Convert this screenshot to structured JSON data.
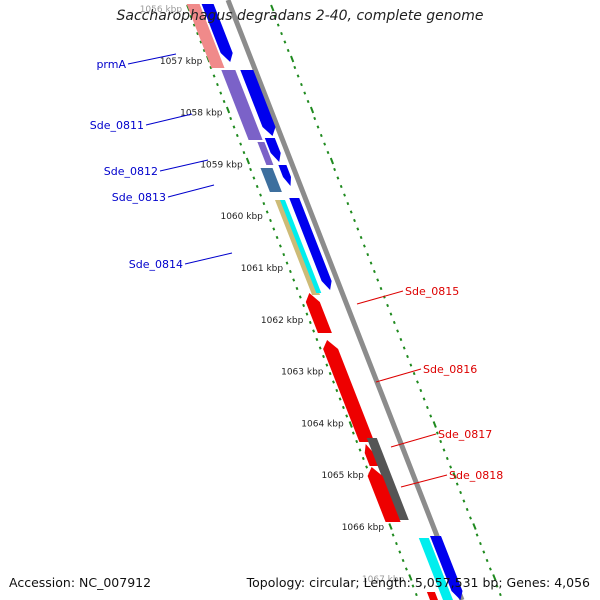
{
  "title": "Saccharophagus degradans 2-40, complete genome",
  "footer": {
    "accession": "Accession: NC_007912",
    "summary": "Topology: circular; Length: 5,057,531 bp; Genes: 4,056"
  },
  "scale_labels": [
    "1056 kbp",
    "1057 kbp",
    "1058 kbp",
    "1059 kbp",
    "1060 kbp",
    "1061 kbp",
    "1062 kbp",
    "1063 kbp",
    "1064 kbp",
    "1065 kbp",
    "1066 kbp",
    "1067 kbp"
  ],
  "gene_labels": [
    {
      "text": "prmA",
      "strand": "forward"
    },
    {
      "text": "Sde_0811",
      "strand": "forward"
    },
    {
      "text": "Sde_0812",
      "strand": "forward"
    },
    {
      "text": "Sde_0813",
      "strand": "forward"
    },
    {
      "text": "Sde_0814",
      "strand": "forward"
    },
    {
      "text": "Sde_0815",
      "strand": "reverse"
    },
    {
      "text": "Sde_0816",
      "strand": "reverse"
    },
    {
      "text": "Sde_0817",
      "strand": "reverse"
    },
    {
      "text": "Sde_0818",
      "strand": "reverse"
    }
  ],
  "colors": {
    "backbone": "#8c8c8c",
    "ticks": "#1f8a1f",
    "forward_cds": "#0000ee",
    "reverse_cds": "#ee0000",
    "forward_label": "#0000cc",
    "reverse_label": "#dd0000",
    "pseudo_gray": "#555555",
    "cyan": "#00eeee",
    "purple": "#7b62c8",
    "pink": "#f08a8a",
    "khaki": "#cdbb77",
    "steel": "#3d6f9e"
  }
}
